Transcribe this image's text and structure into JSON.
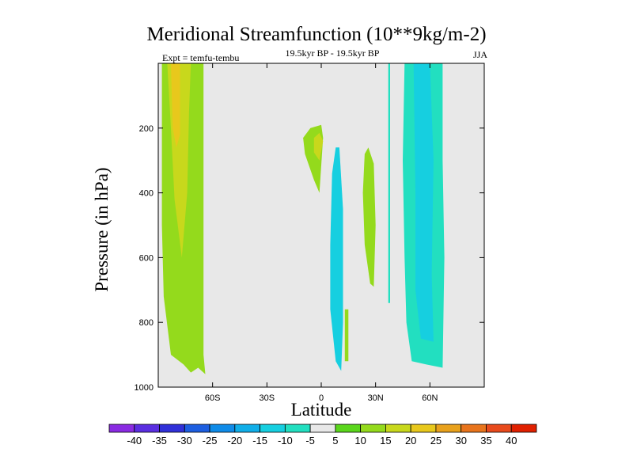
{
  "chart_data": {
    "type": "contour",
    "title": "Meridional Streamfunction (10**9kg/m-2)",
    "subtitle": "19.5kyr BP - 19.5kyr BP",
    "left_annotation": "Expt = temfu-tembu",
    "right_annotation": "JJA",
    "xlabel": "Latitude",
    "ylabel": "Pressure (in hPa)",
    "xlim": [
      -90,
      90
    ],
    "ylim": [
      0,
      1000
    ],
    "y_inverted": true,
    "xticks": [
      {
        "value": -60,
        "label": "60S"
      },
      {
        "value": -30,
        "label": "30S"
      },
      {
        "value": 0,
        "label": "0"
      },
      {
        "value": 30,
        "label": "30N"
      },
      {
        "value": 60,
        "label": "60N"
      }
    ],
    "yticks": [
      200,
      400,
      600,
      800,
      1000
    ],
    "background_color": "#e8e8e8",
    "contour_levels": [
      -40,
      -35,
      -30,
      -25,
      -20,
      -15,
      -10,
      -5,
      5,
      10,
      15,
      20,
      25,
      30,
      35,
      40
    ],
    "colorbar": {
      "colors": [
        "#8a2be2",
        "#5a2ee0",
        "#3030d8",
        "#1d5ee0",
        "#0f8be8",
        "#10aee8",
        "#16cfe0",
        "#22dfc0",
        "#e8e8e8",
        "#5ad61c",
        "#94da1c",
        "#c8d81c",
        "#e8c81c",
        "#e8a11c",
        "#e8741c",
        "#e84a1c",
        "#e02000"
      ],
      "labels": [
        "-40",
        "-35",
        "-30",
        "-25",
        "-20",
        "-15",
        "-10",
        "-5",
        "5",
        "10",
        "15",
        "20",
        "25",
        "30",
        "35",
        "40"
      ]
    },
    "regions": [
      {
        "name": "southern-positive-cell",
        "level": 10,
        "points": [
          [
            -88,
            0
          ],
          [
            -65,
            0
          ],
          [
            -65,
            900
          ],
          [
            -64,
            960
          ],
          [
            -68,
            940
          ],
          [
            -72,
            955
          ],
          [
            -76,
            930
          ],
          [
            -83,
            900
          ],
          [
            -87,
            720
          ],
          [
            -88,
            500
          ]
        ]
      },
      {
        "name": "southern-positive-core",
        "level": 15,
        "points": [
          [
            -85,
            0
          ],
          [
            -72,
            0
          ],
          [
            -73,
            150
          ],
          [
            -74,
            400
          ],
          [
            -77,
            600
          ],
          [
            -81,
            420
          ],
          [
            -83,
            200
          ]
        ]
      },
      {
        "name": "southern-positive-inner",
        "level": 20,
        "points": [
          [
            -83,
            0
          ],
          [
            -78,
            0
          ],
          [
            -78,
            220
          ],
          [
            -80,
            260
          ],
          [
            -82,
            200
          ]
        ]
      },
      {
        "name": "equatorial-positive-cell",
        "level": 10,
        "points": [
          [
            -10,
            230
          ],
          [
            -6,
            200
          ],
          [
            0,
            190
          ],
          [
            1,
            230
          ],
          [
            -1,
            400
          ],
          [
            -4,
            360
          ],
          [
            -9,
            280
          ]
        ]
      },
      {
        "name": "equatorial-positive-core",
        "level": 15,
        "points": [
          [
            -4,
            230
          ],
          [
            -1,
            215
          ],
          [
            1,
            240
          ],
          [
            -1,
            300
          ],
          [
            -4,
            275
          ]
        ]
      },
      {
        "name": "narrow-negative-cell",
        "level": -10,
        "points": [
          [
            5,
            560
          ],
          [
            6,
            340
          ],
          [
            8,
            260
          ],
          [
            10,
            260
          ],
          [
            12,
            450
          ],
          [
            12,
            800
          ],
          [
            11,
            950
          ],
          [
            8,
            920
          ],
          [
            5,
            760
          ]
        ]
      },
      {
        "name": "small-positive-cell",
        "level": 10,
        "points": [
          [
            13,
            760
          ],
          [
            15,
            760
          ],
          [
            15,
            920
          ],
          [
            13,
            920
          ]
        ]
      },
      {
        "name": "subtropical-positive-cell",
        "level": 10,
        "points": [
          [
            24,
            280
          ],
          [
            26,
            260
          ],
          [
            29,
            310
          ],
          [
            30,
            500
          ],
          [
            29,
            690
          ],
          [
            27,
            680
          ],
          [
            24,
            560
          ],
          [
            23,
            400
          ]
        ]
      },
      {
        "name": "thin-negative-cell",
        "level": -5,
        "points": [
          [
            37,
            0
          ],
          [
            38,
            0
          ],
          [
            38,
            740
          ],
          [
            37,
            740
          ]
        ]
      },
      {
        "name": "northern-negative-cell",
        "level": -5,
        "points": [
          [
            46,
            0
          ],
          [
            67,
            0
          ],
          [
            67,
            300
          ],
          [
            68,
            600
          ],
          [
            67,
            940
          ],
          [
            58,
            930
          ],
          [
            50,
            920
          ],
          [
            47,
            800
          ],
          [
            46,
            600
          ],
          [
            45,
            300
          ]
        ]
      },
      {
        "name": "northern-negative-core",
        "level": -10,
        "points": [
          [
            51,
            0
          ],
          [
            60,
            0
          ],
          [
            62,
            300
          ],
          [
            61,
            650
          ],
          [
            62,
            860
          ],
          [
            55,
            850
          ],
          [
            52,
            700
          ],
          [
            52,
            400
          ]
        ]
      }
    ]
  }
}
